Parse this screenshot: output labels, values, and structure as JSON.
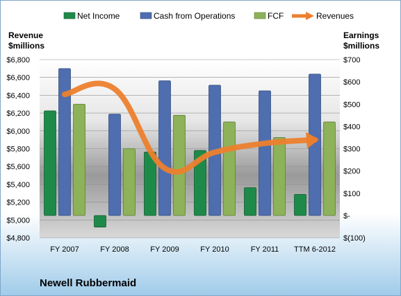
{
  "company": "Newell Rubbermaid",
  "legend": [
    {
      "name": "Net Income",
      "color": "#1e8a4a",
      "kind": "bar"
    },
    {
      "name": "Cash from Operations",
      "color": "#4f6eb0",
      "kind": "bar"
    },
    {
      "name": "FCF",
      "color": "#8db25a",
      "kind": "bar"
    },
    {
      "name": "Revenues",
      "color": "#ec7f2d",
      "kind": "arrow"
    }
  ],
  "axes": {
    "left_title_line1": "Revenue",
    "left_title_line2": "$millions",
    "right_title_line1": "Earnings",
    "right_title_line2": "$millions"
  },
  "chart_data": {
    "type": "bar",
    "title": "Newell Rubbermaid",
    "categories": [
      "FY 2007",
      "FY 2008",
      "FY 2009",
      "FY 2010",
      "FY 2011",
      "TTM 6-2012"
    ],
    "series": [
      {
        "name": "Net Income",
        "axis": "right",
        "color": "#1e8a4a",
        "values": [
          470,
          -52,
          285,
          292,
          125,
          95
        ]
      },
      {
        "name": "Cash from Operations",
        "axis": "right",
        "color": "#4f6eb0",
        "values": [
          660,
          455,
          605,
          585,
          560,
          635
        ]
      },
      {
        "name": "FCF",
        "axis": "right",
        "color": "#8db25a",
        "values": [
          500,
          300,
          450,
          420,
          350,
          420
        ]
      },
      {
        "name": "Revenues",
        "axis": "left",
        "type": "line",
        "color": "#ec7f2d",
        "values": [
          6410,
          6470,
          5580,
          5760,
          5860,
          5900
        ]
      }
    ],
    "left_axis": {
      "ticks": [
        "$6,800",
        "$6,600",
        "$6,400",
        "$6,200",
        "$6,000",
        "$5,800",
        "$5,600",
        "$5,400",
        "$5,200",
        "$5,000",
        "$4,800"
      ],
      "ylim": [
        4800,
        6800
      ]
    },
    "right_axis": {
      "ticks": [
        "$700",
        "$600",
        "$500",
        "$400",
        "$300",
        "$200",
        "$100",
        "$-",
        "$(100)"
      ],
      "ylim": [
        -100,
        700
      ]
    },
    "grid": true,
    "legend_position": "top"
  }
}
